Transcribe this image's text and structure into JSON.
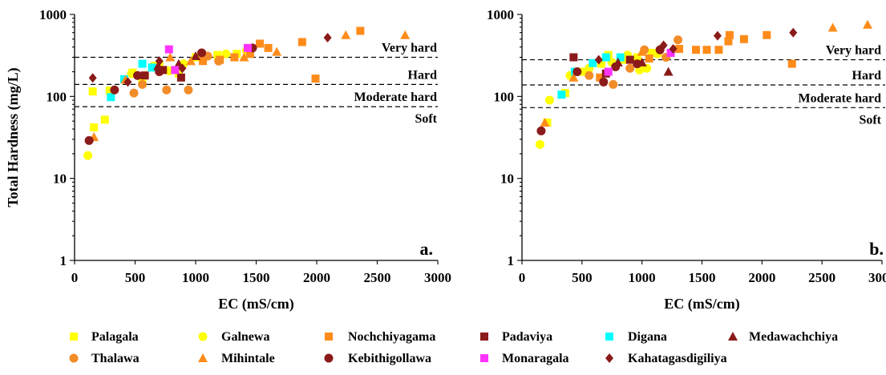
{
  "chart_data": [
    {
      "type": "scatter",
      "panel_label": "a.",
      "xlabel": "EC (mS/cm)",
      "ylabel": "Total Hardness (mg/L)",
      "xlim": [
        0,
        3000
      ],
      "ylim": [
        1,
        1000
      ],
      "yscale": "log",
      "x_ticks": [
        "0",
        "500",
        "1000",
        "1500",
        "2000",
        "2500",
        "3000"
      ],
      "y_ticks": [
        "1",
        "10",
        "100",
        "1000"
      ],
      "thresholds": [
        {
          "value": 300,
          "label": "Very hard"
        },
        {
          "value": 140,
          "label": "Hard"
        },
        {
          "value": 75,
          "label": "Moderate hard"
        },
        {
          "value": 75,
          "label": "Soft"
        }
      ],
      "series": [
        {
          "name": "Palagala",
          "points": [
            [
              150,
              115
            ],
            [
              160,
              42
            ],
            [
              250,
              52
            ],
            [
              290,
              118
            ],
            [
              480,
              195
            ],
            [
              560,
              165
            ],
            [
              700,
              240
            ],
            [
              860,
              190
            ],
            [
              1000,
              300
            ],
            [
              1180,
              320
            ],
            [
              1340,
              330
            ]
          ]
        },
        {
          "name": "Galnewa",
          "points": [
            [
              110,
              19
            ],
            [
              470,
              190
            ],
            [
              580,
              180
            ],
            [
              650,
              235
            ],
            [
              780,
              205
            ],
            [
              900,
              250
            ],
            [
              1090,
              310
            ],
            [
              1250,
              330
            ],
            [
              1420,
              360
            ]
          ]
        },
        {
          "name": "Nochchiyagama",
          "points": [
            [
              1060,
              270
            ],
            [
              1200,
              280
            ],
            [
              1320,
              300
            ],
            [
              1450,
              330
            ],
            [
              1530,
              440
            ],
            [
              1600,
              390
            ],
            [
              1880,
              460
            ],
            [
              1990,
              165
            ],
            [
              2360,
              630
            ]
          ]
        },
        {
          "name": "Padaviya",
          "points": [
            [
              580,
              180
            ],
            [
              730,
              210
            ],
            [
              880,
              170
            ]
          ]
        },
        {
          "name": "Digana",
          "points": [
            [
              300,
              98
            ],
            [
              410,
              162
            ],
            [
              560,
              250
            ],
            [
              640,
              225
            ]
          ]
        },
        {
          "name": "Medawachchiya",
          "points": [
            [
              690,
              235
            ],
            [
              860,
              250
            ],
            [
              1000,
              310
            ]
          ]
        },
        {
          "name": "Thalawa",
          "points": [
            [
              490,
              110
            ],
            [
              560,
              140
            ],
            [
              760,
              120
            ],
            [
              940,
              120
            ],
            [
              1100,
              310
            ],
            [
              1190,
              270
            ]
          ]
        },
        {
          "name": "Mihintale",
          "points": [
            [
              160,
              32
            ],
            [
              420,
              160
            ],
            [
              790,
              300
            ],
            [
              960,
              270
            ],
            [
              1400,
              300
            ],
            [
              1670,
              350
            ],
            [
              2240,
              560
            ],
            [
              2730,
              560
            ]
          ]
        },
        {
          "name": "Kebithigollawa",
          "points": [
            [
              120,
              29
            ],
            [
              330,
              120
            ],
            [
              520,
              180
            ],
            [
              700,
              200
            ],
            [
              1050,
              340
            ],
            [
              1470,
              390
            ]
          ]
        },
        {
          "name": "Monaragala",
          "points": [
            [
              780,
              375
            ],
            [
              830,
              210
            ],
            [
              1430,
              390
            ]
          ]
        },
        {
          "name": "Kahatagasdigiliya",
          "points": [
            [
              150,
              168
            ],
            [
              440,
              150
            ],
            [
              700,
              270
            ],
            [
              890,
              220
            ],
            [
              2090,
              520
            ]
          ]
        }
      ]
    },
    {
      "type": "scatter",
      "panel_label": "b.",
      "xlabel": "EC (mS/cm)",
      "ylabel": "",
      "xlim": [
        0,
        3000
      ],
      "ylim": [
        1,
        1000
      ],
      "yscale": "log",
      "x_ticks": [
        "0",
        "500",
        "1000",
        "1500",
        "2000",
        "2500",
        "3000"
      ],
      "y_ticks": [
        "1",
        "10",
        "100",
        "1000"
      ],
      "thresholds": [
        {
          "value": 280,
          "label": "Very hard"
        },
        {
          "value": 138,
          "label": "Hard"
        },
        {
          "value": 73,
          "label": "Moderate hard"
        },
        {
          "value": 73,
          "label": "Soft"
        }
      ],
      "series": [
        {
          "name": "Palagala",
          "points": [
            [
              210,
              48
            ],
            [
              360,
              110
            ],
            [
              510,
              200
            ],
            [
              660,
              250
            ],
            [
              720,
              320
            ],
            [
              840,
              280
            ],
            [
              960,
              300
            ],
            [
              1080,
              340
            ]
          ]
        },
        {
          "name": "Galnewa",
          "points": [
            [
              150,
              26
            ],
            [
              230,
              90
            ],
            [
              400,
              180
            ],
            [
              560,
              220
            ],
            [
              750,
              260
            ],
            [
              880,
              320
            ],
            [
              980,
              210
            ],
            [
              1040,
              220
            ],
            [
              1130,
              330
            ]
          ]
        },
        {
          "name": "Nochchiyagama",
          "points": [
            [
              650,
              170
            ],
            [
              1060,
              290
            ],
            [
              1310,
              380
            ],
            [
              1450,
              370
            ],
            [
              1540,
              370
            ],
            [
              1640,
              370
            ],
            [
              1720,
              470
            ],
            [
              1730,
              560
            ],
            [
              1850,
              500
            ],
            [
              2040,
              560
            ],
            [
              2250,
              250
            ]
          ]
        },
        {
          "name": "Padaviya",
          "points": [
            [
              430,
              300
            ],
            [
              700,
              190
            ],
            [
              900,
              280
            ]
          ]
        },
        {
          "name": "Digana",
          "points": [
            [
              330,
              105
            ],
            [
              440,
              200
            ],
            [
              590,
              255
            ],
            [
              700,
              300
            ],
            [
              820,
              300
            ]
          ]
        },
        {
          "name": "Medawachchiya",
          "points": [
            [
              800,
              260
            ],
            [
              1000,
              260
            ],
            [
              1220,
              200
            ]
          ]
        },
        {
          "name": "Thalawa",
          "points": [
            [
              560,
              180
            ],
            [
              760,
              140
            ],
            [
              900,
              220
            ],
            [
              1020,
              370
            ],
            [
              1200,
              300
            ],
            [
              1300,
              490
            ]
          ]
        },
        {
          "name": "Mihintale",
          "points": [
            [
              190,
              48
            ],
            [
              430,
              170
            ],
            [
              1000,
              350
            ],
            [
              2590,
              690
            ],
            [
              2880,
              750
            ]
          ]
        },
        {
          "name": "Kebithigollawa",
          "points": [
            [
              160,
              38
            ],
            [
              460,
              200
            ],
            [
              680,
              150
            ],
            [
              780,
              230
            ],
            [
              960,
              250
            ],
            [
              1150,
              370
            ]
          ]
        },
        {
          "name": "Monaragala",
          "points": [
            [
              720,
              200
            ],
            [
              1240,
              340
            ]
          ]
        },
        {
          "name": "Kahatagasdigiliya",
          "points": [
            [
              640,
              280
            ],
            [
              1180,
              420
            ],
            [
              1260,
              380
            ],
            [
              1630,
              550
            ],
            [
              2260,
              600
            ]
          ]
        }
      ]
    }
  ],
  "legend": [
    {
      "name": "Palagala",
      "marker": "square",
      "color": "#FFFF00"
    },
    {
      "name": "Galnewa",
      "marker": "circle",
      "color": "#FFFF00"
    },
    {
      "name": "Nochchiyagama",
      "marker": "square",
      "color": "#FF8C1A"
    },
    {
      "name": "Padaviya",
      "marker": "square",
      "color": "#8B1A1A"
    },
    {
      "name": "Digana",
      "marker": "square",
      "color": "#00FFFF"
    },
    {
      "name": "Medawachchiya",
      "marker": "triangle",
      "color": "#8B1A1A"
    },
    {
      "name": "Thalawa",
      "marker": "circle",
      "color": "#F28C28"
    },
    {
      "name": "Mihintale",
      "marker": "triangle",
      "color": "#FF8C1A"
    },
    {
      "name": "Kebithigollawa",
      "marker": "circle",
      "color": "#8B1A1A"
    },
    {
      "name": "Monaragala",
      "marker": "square",
      "color": "#FF33FF"
    },
    {
      "name": "Kahatagasdigiliya",
      "marker": "diamond",
      "color": "#8B1A1A"
    }
  ]
}
